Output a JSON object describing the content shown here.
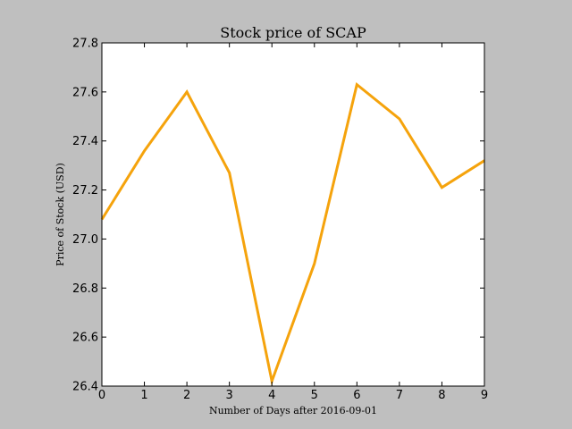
{
  "chart_data": {
    "type": "line",
    "title": "Stock price of SCAP",
    "xlabel": "Number of Days after 2016-09-01",
    "ylabel": "Price of Stock (USD)",
    "xlim": [
      0,
      9
    ],
    "ylim": [
      26.4,
      27.8
    ],
    "xticks": [
      "0",
      "1",
      "2",
      "3",
      "4",
      "5",
      "6",
      "7",
      "8",
      "9"
    ],
    "yticks": [
      "26.4",
      "26.6",
      "26.8",
      "27.0",
      "27.2",
      "27.4",
      "27.6",
      "27.8"
    ],
    "grid": false,
    "series": [
      {
        "color": "#f5a30c",
        "x": [
          0,
          1,
          2,
          3,
          4,
          5,
          6,
          7,
          8,
          9
        ],
        "y": [
          27.08,
          27.36,
          27.6,
          27.27,
          26.42,
          26.9,
          27.63,
          27.49,
          27.21,
          27.32
        ]
      }
    ]
  }
}
